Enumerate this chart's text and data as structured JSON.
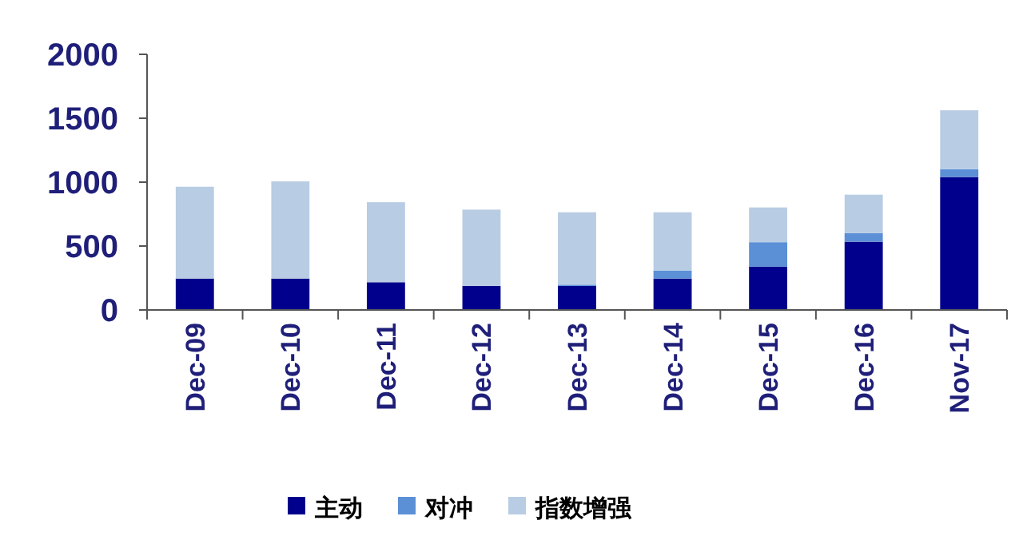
{
  "chart_data": {
    "type": "bar",
    "stacked": true,
    "categories": [
      "Dec-09",
      "Dec-10",
      "Dec-11",
      "Dec-12",
      "Dec-13",
      "Dec-14",
      "Dec-15",
      "Dec-16",
      "Nov-17"
    ],
    "series": [
      {
        "name": "主动",
        "color": "#00008c",
        "values": [
          246,
          246,
          217,
          188,
          188,
          246,
          338,
          534,
          1040
        ]
      },
      {
        "name": "对冲",
        "color": "#5b8fd6",
        "values": [
          0,
          0,
          0,
          0,
          10,
          63,
          192,
          67,
          62
        ]
      },
      {
        "name": "指数增强",
        "color": "#b8cce4",
        "values": [
          718,
          760,
          626,
          597,
          566,
          455,
          272,
          301,
          460
        ]
      }
    ],
    "ylim": [
      0,
      2000
    ],
    "yticks": [
      0,
      500,
      1000,
      1500,
      2000
    ],
    "grid": false,
    "legend": "bottom"
  }
}
